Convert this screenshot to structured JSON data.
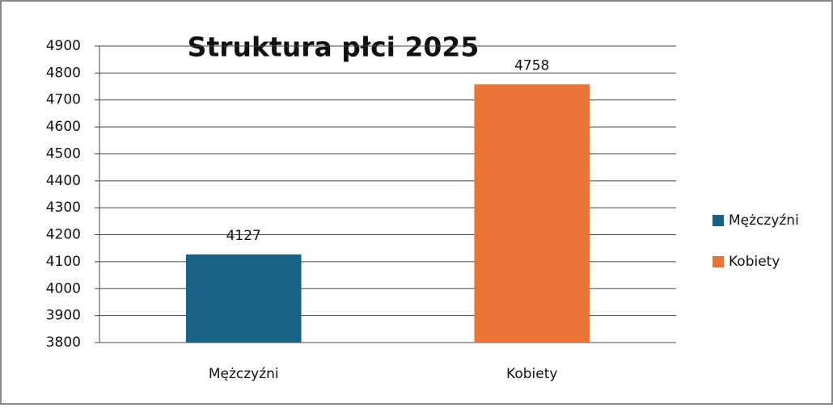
{
  "chart_data": {
    "type": "bar",
    "title": "Struktura płci 2025",
    "categories": [
      "Mężczyźni",
      "Kobiety"
    ],
    "values": [
      4127,
      4758
    ],
    "colors": [
      "#1a6285",
      "#ea7436"
    ],
    "ylim": [
      3800,
      4900
    ],
    "yticks": [
      3800,
      3900,
      4000,
      4100,
      4200,
      4300,
      4400,
      4500,
      4600,
      4700,
      4800,
      4900
    ],
    "grid": true,
    "legend": "right"
  }
}
